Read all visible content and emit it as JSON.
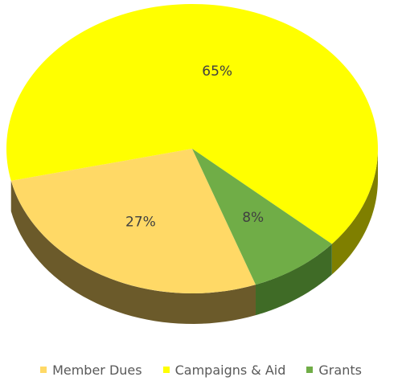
{
  "chart_data": {
    "type": "pie",
    "style": "3d",
    "categories": [
      "Member Dues",
      "Campaigns & Aid",
      "Grants"
    ],
    "values": [
      27,
      65,
      8
    ],
    "labels": [
      "27%",
      "65%",
      "8%"
    ],
    "colors": [
      "#FFD966",
      "#FFFF00",
      "#70AD47"
    ],
    "side_colors": [
      "#6B5A2A",
      "#7F7F00",
      "#3F6B26"
    ],
    "legend_position": "bottom"
  }
}
